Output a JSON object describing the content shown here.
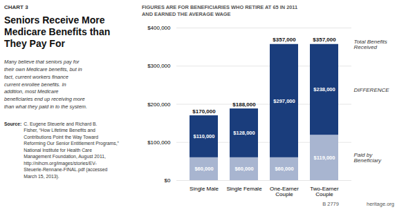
{
  "chart_data": {
    "type": "bar",
    "stacked": true,
    "chart_label": "CHART 3",
    "title": "Seniors Receive More\nMedicare Benefits than\nThey Pay For",
    "subtitle": "FIGURES ARE FOR BENEFICIARIES WHO RETIRE AT 65 IN 2011\nAND EARNED THE AVERAGE WAGE",
    "body_text": "Many believe that seniors pay for\ntheir own Medicare benefits, but in\nfact, current workers finance\ncurrent enrollee benefits. In\naddition, most Medicare\nbeneficiaries end up receiving more\nthan what they paid in to the system.",
    "source_label": "Source:",
    "source_text": "C. Eugene Steuerle and Richard B.\nFisher, “How Lifetime Benefits and\nContributions Point the Way Toward\nReforming Our Senior Entitlement Programs,”\nNational Institute for Health Care\nManagement Foundation, August 2011,\nhttp://nihcm.org/images/stories/EV-\nSteuerle-Rennane-FINAL.pdf (accessed\nMarch 15, 2013).",
    "categories": [
      "Single Male",
      "Single Female",
      "One-Earner\nCouple",
      "Two-Earner\nCouple"
    ],
    "series": [
      {
        "name": "Paid by\nBeneficiary",
        "color": "#a8b5d0",
        "values": [
          60000,
          60000,
          60000,
          119000
        ],
        "value_labels": [
          "$60,000",
          "$60,000",
          "$60,000",
          "$119,000"
        ]
      },
      {
        "name": "DIFFERENCE",
        "color": "#1a3d7c",
        "values": [
          110000,
          128000,
          297000,
          238000
        ],
        "value_labels": [
          "$110,000",
          "$128,000",
          "$297,000",
          "$238,000"
        ]
      }
    ],
    "totals_name": "Total Benefits\nReceived",
    "totals": [
      170000,
      188000,
      357000,
      357000
    ],
    "total_labels": [
      "$170,000",
      "$188,000",
      "$357,000",
      "$357,000"
    ],
    "ylim": [
      0,
      400000
    ],
    "yticks": [
      {
        "value": 0,
        "label": "$0"
      },
      {
        "value": 100000,
        "label": "$100,000"
      },
      {
        "value": 200000,
        "label": "$200,000"
      },
      {
        "value": 300000,
        "label": "$300,000"
      },
      {
        "value": 400000,
        "label": "$400,000"
      }
    ],
    "grid": true,
    "data_labels": true,
    "annotations": [
      "B 2779",
      "heritage.org"
    ]
  }
}
